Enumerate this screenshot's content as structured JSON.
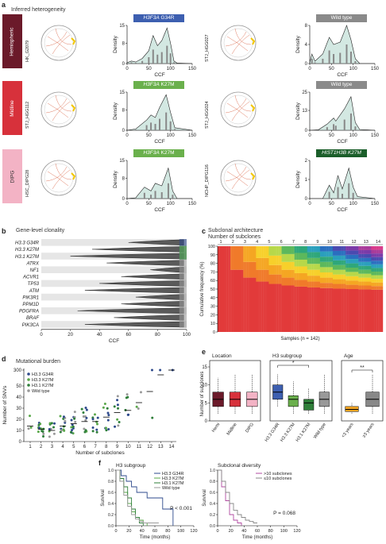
{
  "panel_a": {
    "label": "a",
    "title": "Inferred heterogeneity",
    "rows": [
      {
        "group": "Hemispheric",
        "color": "#6b1a2a",
        "text_color": "#fff",
        "left": {
          "sample": "HK_G2079",
          "mutation": "H3F3A",
          "suffix": " G34R",
          "tag_color": "#3d5fb0"
        },
        "right": {
          "sample": "STJ_HGG027",
          "mutation": "Wild type",
          "suffix": "",
          "tag_color": "#8a8a8a"
        }
      },
      {
        "group": "Midline",
        "color": "#d7313b",
        "text_color": "#fff",
        "left": {
          "sample": "STJ_HGG112",
          "mutation": "H3F3A",
          "suffix": " K27M",
          "tag_color": "#6ab04c"
        },
        "right": {
          "sample": "STJ_HGG024",
          "mutation": "Wild type",
          "suffix": "",
          "tag_color": "#8a8a8a"
        }
      },
      {
        "group": "DIPG",
        "color": "#f3b3c5",
        "text_color": "#333",
        "left": {
          "sample": "HSC_DIPG28",
          "mutation": "H3F3A",
          "suffix": " K27M",
          "tag_color": "#6ab04c"
        },
        "right": {
          "sample": "NCHP_DIPG116",
          "mutation": "HIST1H3B K27M",
          "suffix": "",
          "tag_color": "#1b5e2a"
        }
      }
    ],
    "xlabel": "CCF",
    "ylabel": "Density",
    "xticks": [
      "0",
      "50",
      "100",
      "150"
    ]
  },
  "panel_b": {
    "label": "b",
    "title": "Gene-level clonality",
    "genes": [
      "H3.3 G34R",
      "H3.3 K27M",
      "H3.1 K27M",
      "ATRX",
      "NF1",
      "ACVR1",
      "TP53",
      "ATM",
      "PIK3R1",
      "PPM1D",
      "PDGFRA",
      "BRAF",
      "PIK3CA"
    ],
    "xlabel": "CCF",
    "xticks": [
      "0",
      "20",
      "40",
      "60",
      "80",
      "100"
    ]
  },
  "panel_c": {
    "label": "c",
    "title": "Subclonal architecture",
    "subtitle": "Number of subclones",
    "nums": [
      "1",
      "2",
      "3",
      "4",
      "5",
      "6",
      "7",
      "8",
      "9",
      "10",
      "11",
      "12",
      "13",
      "14"
    ],
    "ylabel": "Cumulative frequency (%)",
    "xlabel": "Samples (n = 142)",
    "yticks": [
      "0",
      "10",
      "20",
      "30",
      "40",
      "50",
      "60",
      "70",
      "80",
      "90",
      "100"
    ]
  },
  "panel_d": {
    "label": "d",
    "title": "Mutational burden",
    "legend": [
      "H3.3 G34R",
      "H3.3 K27M",
      "H3.1 K27M",
      "Wild type"
    ],
    "ylabel": "Number of SNVs",
    "xlabel": "Number of subclones",
    "yticks": [
      "0",
      "10",
      "20",
      "30",
      "40",
      "50",
      "300"
    ],
    "xticks": [
      "1",
      "2",
      "3",
      "4",
      "5",
      "6",
      "7",
      "8",
      "9",
      "10",
      "11",
      "12",
      "13",
      "14"
    ]
  },
  "panel_e": {
    "label": "e",
    "location": {
      "title": "Location",
      "cats": [
        "Hemi",
        "Midline",
        "DIPG"
      ]
    },
    "subgroup": {
      "title": "H3 subgroup",
      "cats": [
        "H3.3 G34R",
        "H3.3 K27M",
        "H3.1 K27M",
        "Wild type"
      ],
      "sig": "*"
    },
    "age": {
      "title": "Age",
      "cats": [
        "<3 years",
        "≥3 years"
      ],
      "sig": "**"
    },
    "ylabel": "Number of subclones",
    "yticks": [
      "0",
      "5",
      "10",
      "15"
    ]
  },
  "panel_f": {
    "label": "f",
    "left": {
      "title": "H3 subgroup",
      "legend": [
        "H3.3 G34R",
        "H3.3 K27M",
        "H3.1 K27M",
        "Wild type"
      ],
      "pvalue": "P < 0.001"
    },
    "right": {
      "title": "Subclonal diversity",
      "legend": [
        ">10 subclones",
        "≤10 subclones"
      ],
      "pvalue": "P = 0.068"
    },
    "ylabel": "Survival",
    "xlabel": "Time (months)",
    "xticks": [
      "0",
      "20",
      "40",
      "60",
      "80",
      "100",
      "120"
    ],
    "yticks": [
      "0.0",
      "0.2",
      "0.4",
      "0.6",
      "0.8",
      "1.0"
    ]
  }
}
